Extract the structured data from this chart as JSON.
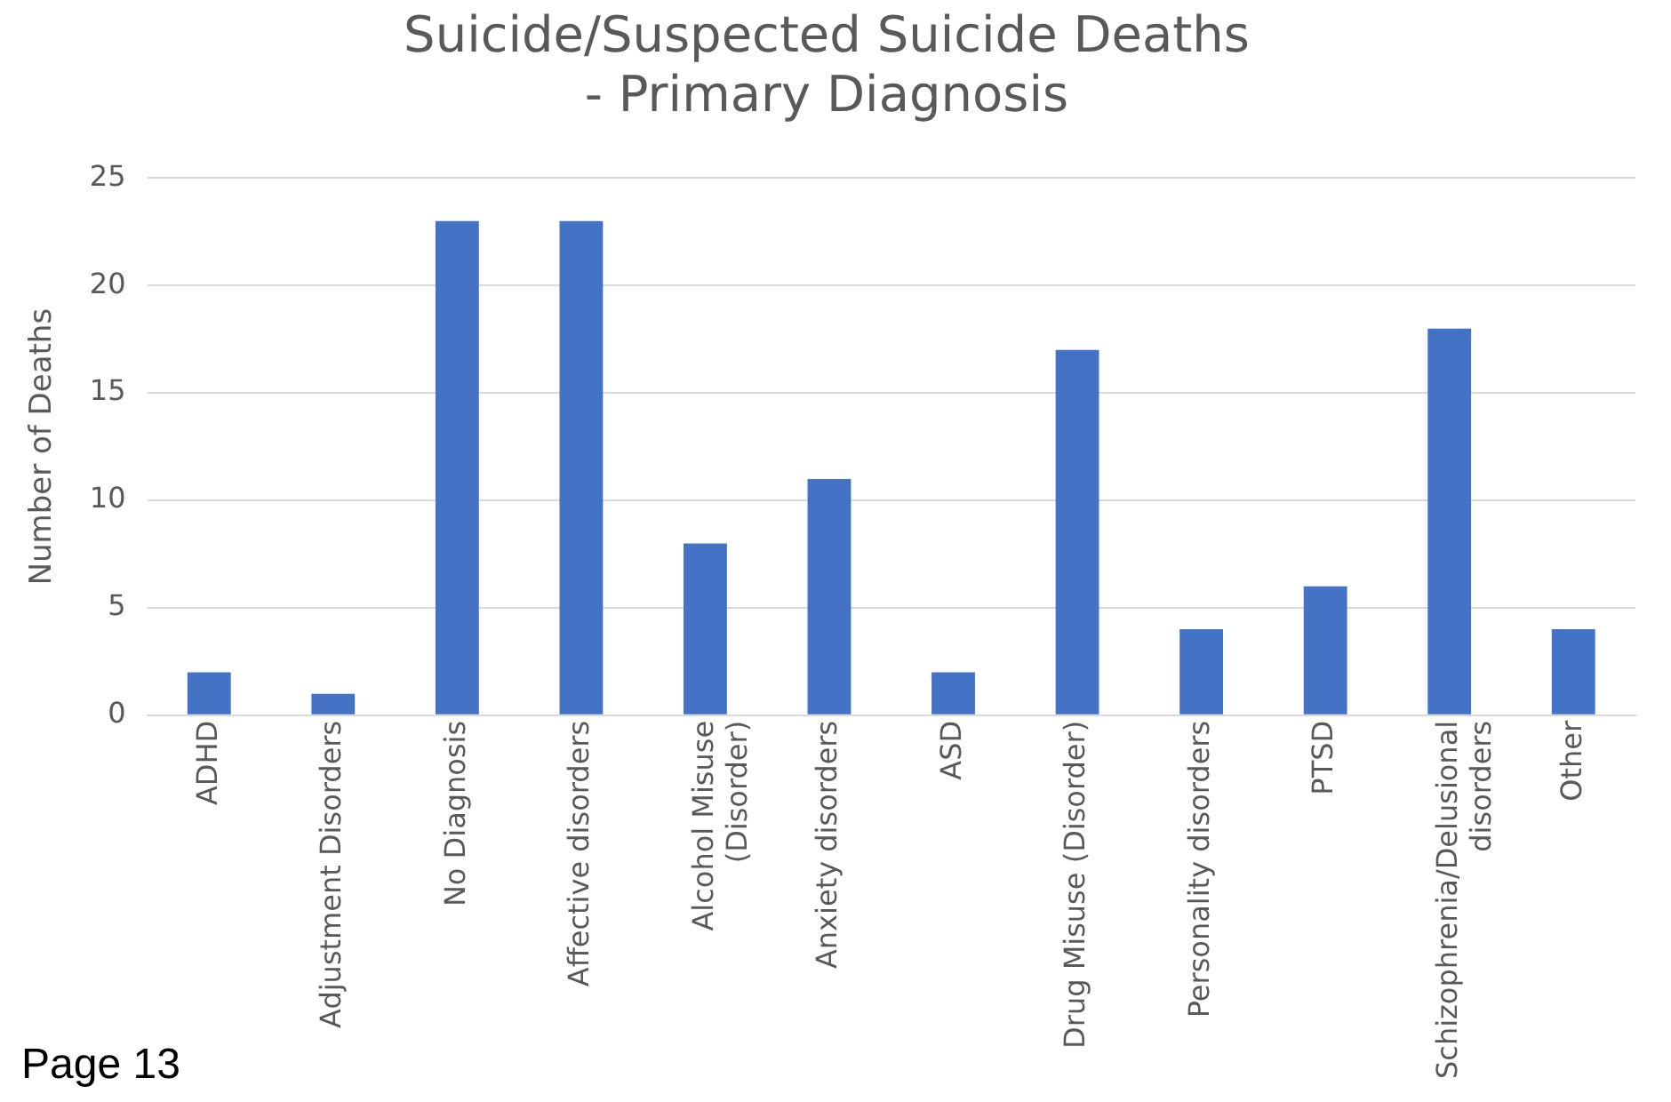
{
  "chart_data": {
    "type": "bar",
    "title": "Suicide/Suspected Suicide Deaths - Primary Diagnosis",
    "ylabel": "Number of Deaths",
    "categories": [
      "ADHD",
      "Adjustment Disorders",
      "No Diagnosis",
      "Affective disorders",
      "Alcohol Misuse (Disorder)",
      "Anxiety disorders",
      "ASD",
      "Drug Misuse (Disorder)",
      "Personality disorders",
      "PTSD",
      "Schizophrenia/Delusional disorders",
      "Other"
    ],
    "values": [
      2,
      1,
      23,
      23,
      8,
      11,
      2,
      17,
      4,
      6,
      18,
      4
    ],
    "color": "#4472c4",
    "ylim": [
      0,
      25
    ],
    "yticks": [
      0,
      5,
      10,
      15,
      20,
      25
    ],
    "grid": "y",
    "legend": false,
    "annotations": [
      "Page 13"
    ]
  }
}
